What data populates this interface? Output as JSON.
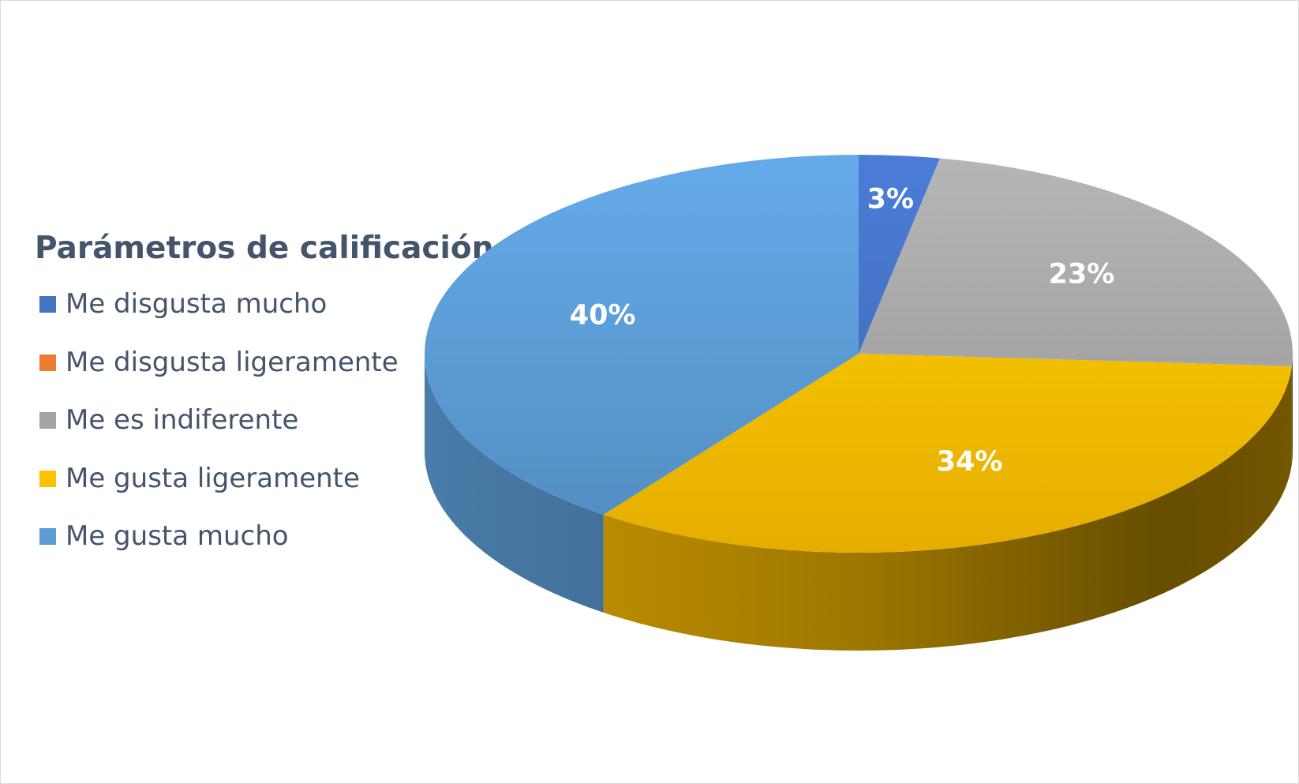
{
  "chart_data": {
    "type": "pie",
    "style": "3d",
    "legend_title": "Parámetros de calificación",
    "legend_position": "left",
    "categories": [
      "Me disgusta mucho",
      "Me disgusta ligeramente",
      "Me es indiferente",
      "Me gusta ligeramente",
      "Me gusta mucho"
    ],
    "values": [
      3,
      0,
      23,
      34,
      40
    ],
    "data_labels": [
      "3%",
      "",
      "23%",
      "34%",
      "40%"
    ],
    "colors": [
      "#4472c4",
      "#ed7d31",
      "#a5a5a5",
      "#ffc000",
      "#5b9bd5"
    ]
  }
}
